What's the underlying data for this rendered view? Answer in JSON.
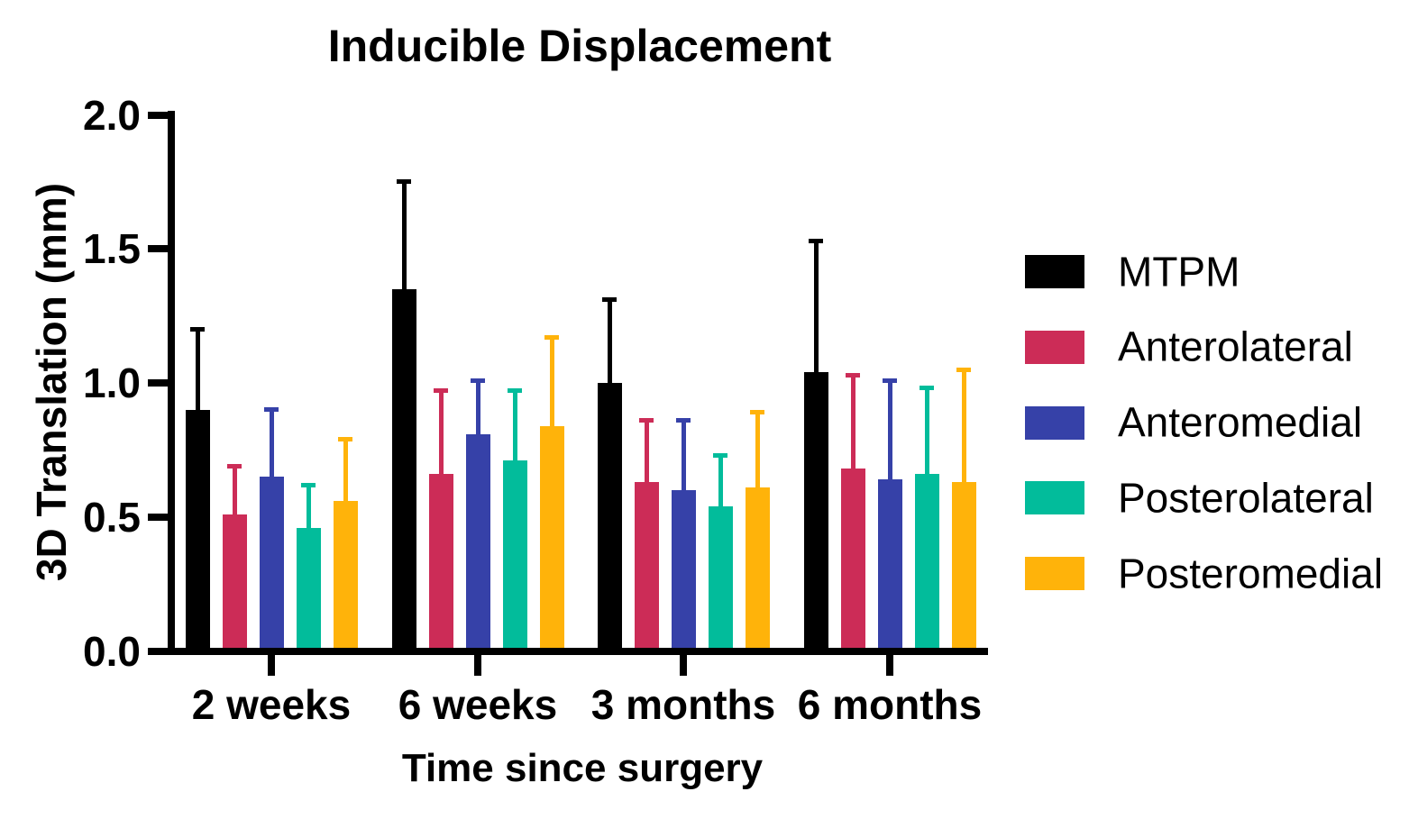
{
  "title": "Inducible Displacement",
  "chart_data": {
    "type": "bar",
    "title": "Inducible Displacement",
    "xlabel": "Time since surgery",
    "ylabel": "3D Translation (mm)",
    "ylim": [
      0.0,
      2.0
    ],
    "yticks": [
      0.0,
      0.5,
      1.0,
      1.5,
      2.0
    ],
    "ytick_labels": [
      "0.0",
      "0.5",
      "1.0",
      "1.5",
      "2.0"
    ],
    "categories": [
      "2 weeks",
      "6 weeks",
      "3 months",
      "6 months"
    ],
    "grid": false,
    "legend_position": "right",
    "error_bars": "upper only, colored per series",
    "series": [
      {
        "name": "MTPM",
        "color": "#000000",
        "values": [
          0.9,
          1.35,
          1.0,
          1.04
        ],
        "error_tops": [
          1.2,
          1.75,
          1.31,
          1.53
        ]
      },
      {
        "name": "Anterolateral",
        "color": "#CC2C57",
        "values": [
          0.51,
          0.66,
          0.63,
          0.68
        ],
        "error_tops": [
          0.69,
          0.97,
          0.86,
          1.03
        ]
      },
      {
        "name": "Anteromedial",
        "color": "#3641A8",
        "values": [
          0.65,
          0.81,
          0.6,
          0.64
        ],
        "error_tops": [
          0.9,
          1.01,
          0.86,
          1.01
        ]
      },
      {
        "name": "Posterolateral",
        "color": "#02BC9B",
        "values": [
          0.46,
          0.71,
          0.54,
          0.66
        ],
        "error_tops": [
          0.62,
          0.97,
          0.73,
          0.98
        ]
      },
      {
        "name": "Posteromedial",
        "color": "#FFB30A",
        "values": [
          0.56,
          0.84,
          0.61,
          0.63
        ],
        "error_tops": [
          0.79,
          1.17,
          0.89,
          1.05
        ]
      }
    ]
  }
}
